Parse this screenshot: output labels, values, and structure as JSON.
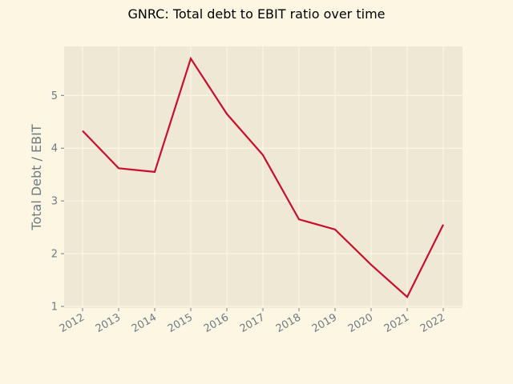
{
  "chart_data": {
    "type": "line",
    "title": "GNRC: Total debt to EBIT ratio over time",
    "xlabel": "",
    "ylabel": "Total Debt / EBIT",
    "x": [
      "2012",
      "2013",
      "2014",
      "2015",
      "2016",
      "2017",
      "2018",
      "2019",
      "2020",
      "2021",
      "2022"
    ],
    "series": [
      {
        "values": [
          4.33,
          3.62,
          3.55,
          5.7,
          4.65,
          3.87,
          2.65,
          2.46,
          1.79,
          1.18,
          2.55
        ]
      }
    ],
    "yticks": [
      1,
      2,
      3,
      4,
      5
    ],
    "ylim": [
      0.97,
      5.93
    ],
    "grid": true,
    "legend": "none"
  },
  "colors": {
    "background": "#fdf6e3",
    "plot_background": "#eee8d5",
    "line": "#c8102e",
    "grid": "#fdf6e3",
    "tick_text": "#6e7b85"
  }
}
